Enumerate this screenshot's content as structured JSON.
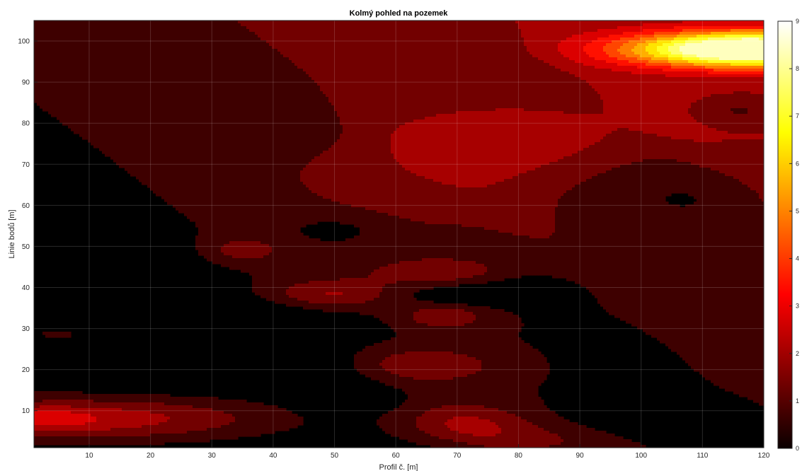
{
  "chart_data": {
    "type": "heatmap",
    "style": "filled-contour",
    "title": "Kolmý pohled na pozemek",
    "xlabel": "Profil č. [m]",
    "ylabel": "Linie bodů [m]",
    "xlim": [
      1,
      120
    ],
    "ylim": [
      1,
      105
    ],
    "xticks": [
      10,
      20,
      30,
      40,
      50,
      60,
      70,
      80,
      90,
      100,
      110,
      120
    ],
    "yticks": [
      10,
      20,
      30,
      40,
      50,
      60,
      70,
      80,
      90,
      100
    ],
    "grid": true,
    "colormap": "hot",
    "colorbar": {
      "location": "right",
      "min": 0,
      "max": 9,
      "ticks": [
        0,
        1,
        2,
        3,
        4,
        5,
        6,
        7,
        8,
        9
      ]
    },
    "contour_levels": [
      0.7,
      1.4,
      2.1,
      2.8,
      3.5,
      4.2,
      4.9,
      5.6,
      6.3,
      7.0,
      7.7,
      8.4
    ],
    "field_components": [
      {
        "kind": "band",
        "ymin": 0,
        "ymax": 105,
        "x0": 74,
        "ys": 32,
        "xw": 11,
        "v": 0.75
      },
      {
        "kind": "band",
        "ymin": 0,
        "ymax": 105,
        "x0": 128,
        "ys": 32,
        "xw": 11,
        "v": 0.75
      },
      {
        "kind": "band",
        "ymin": 0,
        "ymax": 105,
        "x0": 175,
        "ys": 32,
        "xw": 11,
        "v": 0.75
      },
      {
        "kind": "blob",
        "x": 70,
        "y": 70,
        "sx": 18,
        "sy": 10,
        "v": 0.9
      },
      {
        "kind": "blob",
        "x": 85,
        "y": 77,
        "sx": 14,
        "sy": 6,
        "v": 0.55
      },
      {
        "kind": "blob",
        "x": 52,
        "y": 66,
        "sx": 10,
        "sy": 6,
        "v": 0.45
      },
      {
        "kind": "blob",
        "x": 68,
        "y": 55,
        "sx": 10,
        "sy": 4,
        "v": 0.35
      },
      {
        "kind": "blob",
        "x": 35,
        "y": 49,
        "sx": 5,
        "sy": 2.5,
        "v": 1.0
      },
      {
        "kind": "blob",
        "x": 50,
        "y": 38.5,
        "sx": 7,
        "sy": 2.5,
        "v": 1.5
      },
      {
        "kind": "blob",
        "x": 67,
        "y": 43.5,
        "sx": 8,
        "sy": 2.5,
        "v": 1.5
      },
      {
        "kind": "blob",
        "x": 68,
        "y": 33,
        "sx": 5,
        "sy": 2.2,
        "v": 1.3
      },
      {
        "kind": "blob",
        "x": 65,
        "y": 21,
        "sx": 8,
        "sy": 3,
        "v": 1.3
      },
      {
        "kind": "blob",
        "x": 10,
        "y": 8,
        "sx": 22,
        "sy": 4,
        "v": 2.5
      },
      {
        "kind": "blob",
        "x": 2,
        "y": 8,
        "sx": 6,
        "sy": 2,
        "v": 1.0
      },
      {
        "kind": "blob",
        "x": 70,
        "y": 7,
        "sx": 8,
        "sy": 3.5,
        "v": 1.5
      },
      {
        "kind": "blob",
        "x": 82,
        "y": 3,
        "sx": 12,
        "sy": 3,
        "v": 0.8
      },
      {
        "kind": "blob",
        "x": 5,
        "y": 28.5,
        "sx": 6,
        "sy": 2,
        "v": 0.8
      },
      {
        "kind": "blob",
        "x": 3,
        "y": 17.5,
        "sx": 5,
        "sy": 2,
        "v": 0.6
      },
      {
        "kind": "blob",
        "x": 30,
        "y": 38,
        "sx": 6,
        "sy": 3,
        "v": 0.3
      },
      {
        "kind": "blob",
        "x": 40,
        "y": 30,
        "sx": 10,
        "sy": 3.5,
        "v": -1.1
      },
      {
        "kind": "blob",
        "x": 15,
        "y": 21,
        "sx": 15,
        "sy": 3,
        "v": -1.0
      },
      {
        "kind": "blob",
        "x": 49,
        "y": 11.5,
        "sx": 3,
        "sy": 1.5,
        "v": -1.0
      },
      {
        "kind": "blob",
        "x": 50,
        "y": 54,
        "sx": 3.5,
        "sy": 1.6,
        "v": -0.8
      },
      {
        "kind": "blob",
        "x": 74,
        "y": 38,
        "sx": 4.5,
        "sy": 1.1,
        "v": -1.3
      },
      {
        "kind": "blob",
        "x": 74,
        "y": 39.5,
        "sx": 12,
        "sy": 3,
        "v": -0.8
      },
      {
        "kind": "blob",
        "x": 105,
        "y": 63,
        "sx": 18,
        "sy": 8,
        "v": -0.9
      },
      {
        "kind": "blob",
        "x": 108,
        "y": 30,
        "sx": 14,
        "sy": 14,
        "v": -0.5
      },
      {
        "kind": "blob",
        "x": 108,
        "y": 8,
        "sx": 14,
        "sy": 4,
        "v": -0.9
      },
      {
        "kind": "blob",
        "x": 116,
        "y": 83,
        "sx": 5,
        "sy": 2.5,
        "v": -0.9
      },
      {
        "kind": "blob",
        "x": 118,
        "y": 98,
        "sx": 14,
        "sy": 3,
        "v": 8.8
      }
    ]
  }
}
